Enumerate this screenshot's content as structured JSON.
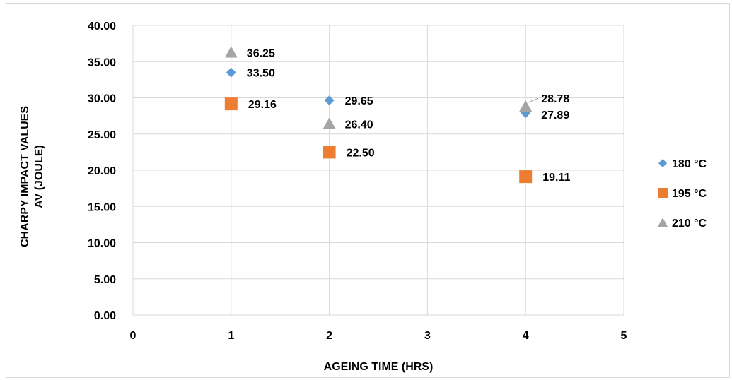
{
  "chart_data": {
    "type": "scatter",
    "title": "",
    "xlabel": "AGEING TIME (HRS)",
    "ylabel_lines": [
      "CHARPY IMPACT VALUES",
      "AV (JOULE)"
    ],
    "xlim": [
      0,
      5
    ],
    "ylim": [
      0,
      40
    ],
    "x_ticks": [
      "0",
      "1",
      "2",
      "3",
      "4",
      "5"
    ],
    "y_ticks": [
      "0.00",
      "5.00",
      "10.00",
      "15.00",
      "20.00",
      "25.00",
      "30.00",
      "35.00",
      "40.00"
    ],
    "grid": true,
    "legend_position": "right",
    "series": [
      {
        "name": "180 °C",
        "marker": "diamond",
        "color": "#5b9bd5",
        "points": [
          {
            "x": 1,
            "y": 33.5,
            "label": "33.50"
          },
          {
            "x": 2,
            "y": 29.65,
            "label": "29.65"
          },
          {
            "x": 4,
            "y": 27.89,
            "label": "27.89"
          }
        ]
      },
      {
        "name": "195 °C",
        "marker": "square",
        "color": "#ed7d31",
        "points": [
          {
            "x": 1,
            "y": 29.16,
            "label": "29.16"
          },
          {
            "x": 2,
            "y": 22.5,
            "label": "22.50"
          },
          {
            "x": 4,
            "y": 19.11,
            "label": "19.11"
          }
        ]
      },
      {
        "name": "210 °C",
        "marker": "triangle",
        "color": "#a5a5a5",
        "points": [
          {
            "x": 1,
            "y": 36.25,
            "label": "36.25"
          },
          {
            "x": 2,
            "y": 26.4,
            "label": "26.40"
          },
          {
            "x": 4,
            "y": 28.78,
            "label": "28.78"
          }
        ]
      }
    ]
  }
}
